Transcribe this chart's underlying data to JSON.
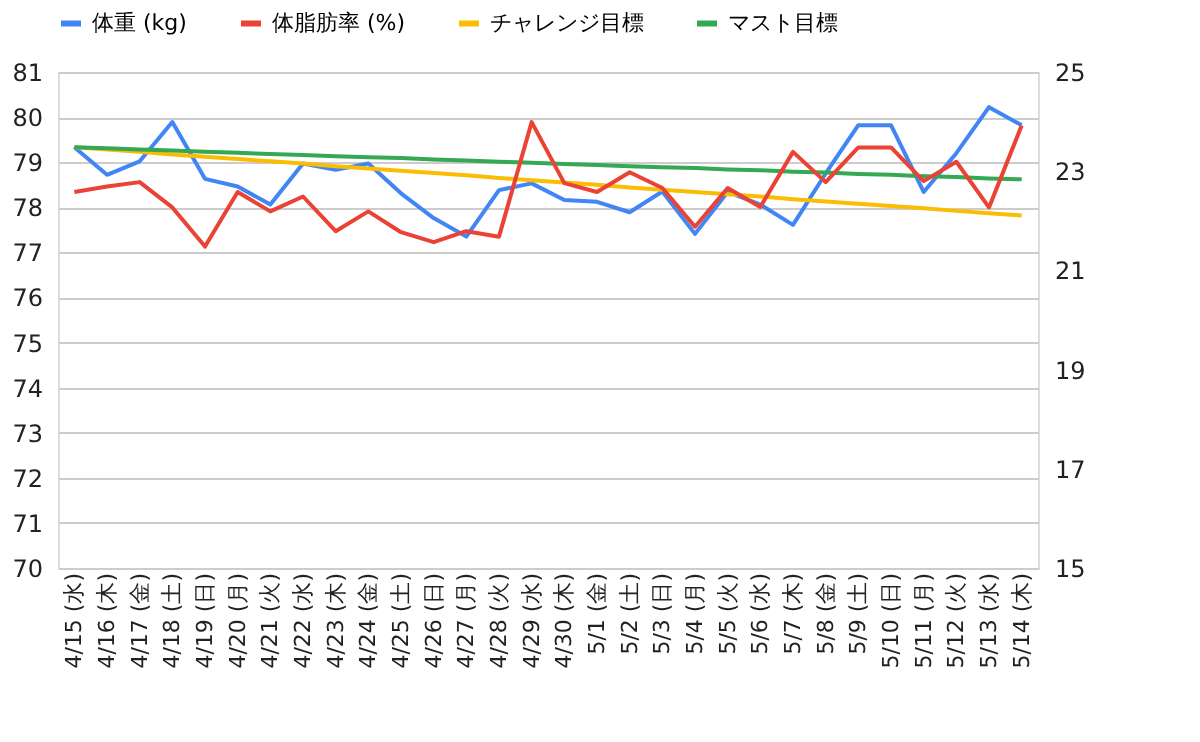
{
  "chart_data": {
    "type": "line",
    "categories": [
      "4/15 (水)",
      "4/16 (木)",
      "4/17 (金)",
      "4/18 (土)",
      "4/19 (日)",
      "4/20 (月)",
      "4/21 (火)",
      "4/22 (水)",
      "4/23 (木)",
      "4/24 (金)",
      "4/25 (土)",
      "4/26 (日)",
      "4/27 (月)",
      "4/28 (火)",
      "4/29 (水)",
      "4/30 (木)",
      "5/1 (金)",
      "5/2 (土)",
      "5/3 (日)",
      "5/4 (月)",
      "5/5 (火)",
      "5/6 (水)",
      "5/7 (木)",
      "5/8 (金)",
      "5/9 (土)",
      "5/10 (日)",
      "5/11 (月)",
      "5/12 (火)",
      "5/13 (水)",
      "5/14 (木)"
    ],
    "series": [
      {
        "name": "体重 (kg)",
        "color": "#4285f4",
        "values": [
          79.33,
          78.72,
          79.02,
          79.89,
          78.63,
          78.46,
          78.06,
          78.97,
          78.83,
          78.97,
          78.31,
          77.76,
          77.35,
          78.38,
          78.53,
          78.16,
          78.12,
          77.89,
          78.35,
          77.41,
          78.34,
          78.06,
          77.61,
          78.75,
          79.82,
          79.82,
          78.34,
          79.2,
          80.22,
          79.82
        ]
      },
      {
        "name": "体脂肪率 (%)",
        "color": "#ea4335",
        "axis": "y2",
        "values": [
          22.58,
          22.69,
          22.78,
          22.27,
          21.48,
          22.58,
          22.19,
          22.49,
          21.79,
          22.19,
          21.77,
          21.57,
          21.79,
          21.68,
          23.99,
          22.76,
          22.58,
          22.98,
          22.66,
          21.88,
          22.66,
          22.28,
          23.39,
          22.78,
          23.48,
          23.48,
          22.8,
          23.19,
          22.27,
          23.92
        ]
      },
      {
        "name": "チャレンジ目標",
        "color": "#fbbc04",
        "values": [
          79.33,
          79.28,
          79.23,
          79.17,
          79.12,
          79.07,
          79.02,
          78.97,
          78.91,
          78.86,
          78.81,
          78.76,
          78.71,
          78.65,
          78.6,
          78.55,
          78.5,
          78.44,
          78.39,
          78.34,
          78.29,
          78.24,
          78.18,
          78.13,
          78.08,
          78.03,
          77.98,
          77.92,
          77.87,
          77.82
        ]
      },
      {
        "name": "マスト目標",
        "color": "#34a853",
        "values": [
          79.33,
          79.31,
          79.28,
          79.26,
          79.23,
          79.21,
          79.18,
          79.16,
          79.13,
          79.11,
          79.09,
          79.06,
          79.04,
          79.01,
          78.99,
          78.96,
          78.94,
          78.91,
          78.89,
          78.87,
          78.84,
          78.82,
          78.79,
          78.77,
          78.74,
          78.72,
          78.69,
          78.67,
          78.64,
          78.62
        ]
      }
    ],
    "ylim": [
      70,
      81
    ],
    "yticks": [
      70,
      71,
      72,
      73,
      74,
      75,
      76,
      77,
      78,
      79,
      80,
      81
    ],
    "y2lim": [
      15,
      25
    ],
    "y2ticks": [
      15,
      17,
      19,
      21,
      23,
      25
    ],
    "grid": "y",
    "legend": "top",
    "marker": "none",
    "line_style": "solid"
  }
}
